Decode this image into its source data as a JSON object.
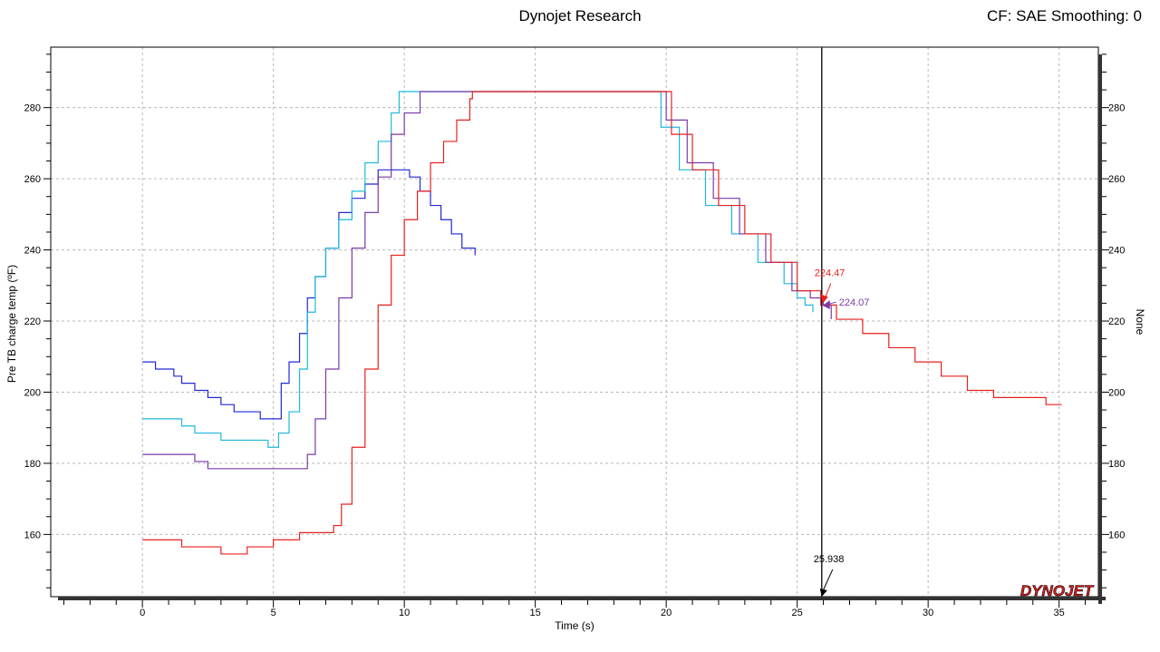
{
  "header": {
    "title": "Dynojet Research",
    "correction": "CF: SAE Smoothing: 0"
  },
  "logo_text": "DYNOJET",
  "chart_data": {
    "type": "line",
    "xlabel": "Time (s)",
    "ylabel": "Pre TB charge temp (ºF)",
    "ylabel_right": "None",
    "xlim": [
      -3.5,
      36.5
    ],
    "ylim": [
      142.5,
      297
    ],
    "xticks": [
      0,
      5,
      10,
      15,
      20,
      25,
      30,
      35
    ],
    "yticks": [
      160,
      180,
      200,
      220,
      240,
      260,
      280
    ],
    "grid": true,
    "cursor": {
      "x": 25.938,
      "label": "25.938"
    },
    "annotations": [
      {
        "text": "224.47",
        "x": 25.95,
        "y": 224.47,
        "color": "#e8211f"
      },
      {
        "text": "224.07",
        "x": 25.95,
        "y": 224.07,
        "color": "#7a3aa8"
      }
    ],
    "series": [
      {
        "color": "#2228d4",
        "x": [
          0,
          0.4,
          0.5,
          1.0,
          1.2,
          1.5,
          2.0,
          2.5,
          3.0,
          3.5,
          4.0,
          4.5,
          5.0,
          5.3,
          5.6,
          6.0,
          6.3,
          6.6,
          7.0,
          7.5,
          8.0,
          8.5,
          9.0,
          9.5,
          9.8,
          10.2,
          10.6,
          11.0,
          11.4,
          11.8,
          12.2,
          12.7
        ],
        "y": [
          208.5,
          208.5,
          206.5,
          206.5,
          204.5,
          202.5,
          200.5,
          198.5,
          196.5,
          194.5,
          194.5,
          192.5,
          192.5,
          202.5,
          208.5,
          216.5,
          226.5,
          232.5,
          240.5,
          250.5,
          254.5,
          258.5,
          262.5,
          262.5,
          262.5,
          260.5,
          256.5,
          252.5,
          248.5,
          244.5,
          240.5,
          238.5
        ]
      },
      {
        "color": "#1fb8dc",
        "x": [
          0,
          1.0,
          1.5,
          2.0,
          3.0,
          4.0,
          4.8,
          5.2,
          5.6,
          6.0,
          6.3,
          6.6,
          7.0,
          7.5,
          8.0,
          8.5,
          9.0,
          9.5,
          9.8,
          10.2,
          12,
          15,
          18,
          19.3,
          19.8,
          20.5,
          21.5,
          22.5,
          23.5,
          24.5,
          25.0,
          25.3,
          25.6
        ],
        "y": [
          192.5,
          192.5,
          190.5,
          188.5,
          186.5,
          186.5,
          184.5,
          188.5,
          194.5,
          206.5,
          222.5,
          232.5,
          240.5,
          248.5,
          256.5,
          264.5,
          270.5,
          278.5,
          284.5,
          284.5,
          284.5,
          284.5,
          284.5,
          284.5,
          274.5,
          262.5,
          252.5,
          244.5,
          236.5,
          230.5,
          226.5,
          224.5,
          222.5
        ]
      },
      {
        "color": "#7a3aa8",
        "x": [
          0,
          1.0,
          1.5,
          2.0,
          2.5,
          3.5,
          4.5,
          5.5,
          6.0,
          6.3,
          6.6,
          7.0,
          7.5,
          8.0,
          8.5,
          9.0,
          9.5,
          10.0,
          10.6,
          12,
          15,
          18,
          19.6,
          20.0,
          20.8,
          21.8,
          22.8,
          23.8,
          24.8,
          25.5,
          26.0,
          26.3
        ],
        "y": [
          182.5,
          182.5,
          182.5,
          180.5,
          178.5,
          178.5,
          178.5,
          178.5,
          178.5,
          182.5,
          192.5,
          206.5,
          226.5,
          240.5,
          250.5,
          260.5,
          272.5,
          278.5,
          284.5,
          284.5,
          284.5,
          284.5,
          284.5,
          276.5,
          264.5,
          254.5,
          244.5,
          236.5,
          228.5,
          226.5,
          224.5,
          220.5
        ]
      },
      {
        "color": "#e8211f",
        "x": [
          0,
          0.9,
          1.5,
          2.0,
          2.5,
          3.0,
          3.7,
          4.0,
          4.8,
          5.0,
          5.5,
          6.0,
          6.5,
          7.0,
          7.3,
          7.6,
          8.0,
          8.5,
          9.0,
          9.5,
          10.0,
          10.5,
          11.0,
          11.5,
          12.0,
          12.5,
          12.6,
          15,
          18,
          19.6,
          20.2,
          21,
          22,
          23,
          24,
          25,
          25.9,
          26.5,
          27.5,
          28.5,
          29.5,
          30.5,
          31.5,
          32.5,
          33.5,
          34.5,
          35.1
        ],
        "y": [
          158.5,
          158.5,
          156.5,
          156.5,
          156.5,
          154.5,
          154.5,
          156.5,
          156.5,
          158.5,
          158.5,
          160.5,
          160.5,
          160.5,
          162.5,
          168.5,
          184.5,
          206.5,
          224.5,
          238.5,
          248.5,
          256.5,
          264.5,
          270.5,
          276.5,
          282.5,
          284.5,
          284.5,
          284.5,
          284.5,
          272.5,
          262.5,
          252.5,
          244.5,
          236.5,
          228.5,
          224.5,
          220.5,
          216.5,
          212.5,
          208.5,
          204.5,
          200.5,
          198.5,
          198.5,
          196.5,
          196.5
        ]
      }
    ]
  }
}
